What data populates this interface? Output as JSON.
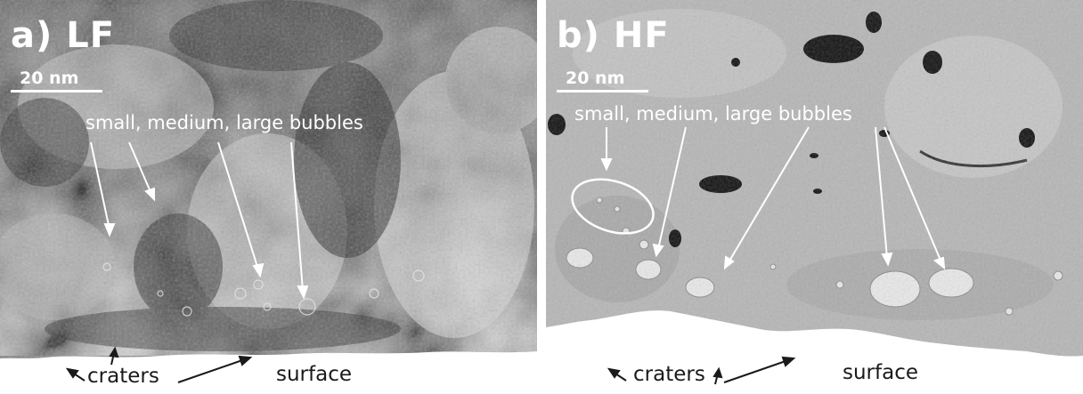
{
  "panels": [
    {
      "label": "a) LF",
      "scale_bar": "20 nm",
      "bubbles_label": "small, medium, large bubbles",
      "craters_label": "craters",
      "surface_label": "surface"
    },
    {
      "label": "b) HF",
      "scale_bar": "20 nm",
      "bubbles_label": "small, medium, large bubbles",
      "craters_label": "craters",
      "surface_label": "surface"
    }
  ]
}
